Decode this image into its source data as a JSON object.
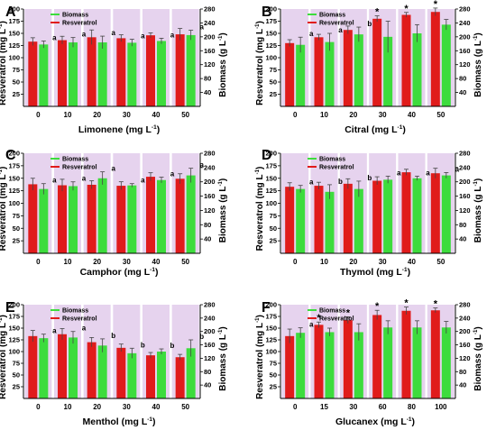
{
  "figure": {
    "legend_labels": [
      "Biomass",
      "Resveratrol"
    ],
    "colors": {
      "biomass": "#3ddc3d",
      "resveratrol": "#e01b1b",
      "shade": "#e6d3ee"
    }
  },
  "chart_data": [
    {
      "type": "bar",
      "panel": "A",
      "xlabel": "Limonene",
      "xunit": "(mg L-1)",
      "ylabel_left": "Resveratrol (mg L-1)",
      "ylabel_right": "Biomass (g L-1)",
      "categories": [
        "0",
        "10",
        "20",
        "30",
        "40",
        "50"
      ],
      "ylim_left": [
        0,
        200
      ],
      "yticks_left": [
        25,
        50,
        75,
        100,
        125,
        150,
        175,
        200
      ],
      "ylim_right": [
        0,
        280
      ],
      "yticks_right": [
        40,
        80,
        120,
        160,
        200,
        240,
        280
      ],
      "legend": "top-left",
      "series": [
        {
          "name": "Resveratrol",
          "axis": "left",
          "values": [
            133,
            136,
            142,
            140,
            146,
            148
          ],
          "errors": [
            8,
            8,
            15,
            7,
            5,
            12
          ]
        },
        {
          "name": "Biomass",
          "axis": "right",
          "values": [
            178,
            184,
            184,
            183,
            188,
            205
          ],
          "errors": [
            10,
            14,
            18,
            10,
            8,
            14
          ]
        }
      ],
      "annotations": [
        "a",
        "a",
        "a",
        "a",
        "a",
        "a"
      ]
    },
    {
      "type": "bar",
      "panel": "B",
      "xlabel": "Citral",
      "xunit": "(mg L-1)",
      "ylabel_left": "Resveratrol (mg L-1)",
      "ylabel_right": "Biomass (g L-1)",
      "categories": [
        "0",
        "10",
        "20",
        "30",
        "40",
        "50"
      ],
      "ylim_left": [
        0,
        200
      ],
      "yticks_left": [
        25,
        50,
        75,
        100,
        125,
        150,
        175,
        200
      ],
      "ylim_right": [
        0,
        280
      ],
      "yticks_right": [
        40,
        80,
        120,
        160,
        200,
        240,
        280
      ],
      "legend": "top-left",
      "series": [
        {
          "name": "Resveratrol",
          "axis": "left",
          "values": [
            130,
            142,
            157,
            180,
            188,
            194
          ],
          "errors": [
            7,
            6,
            8,
            6,
            5,
            8
          ]
        },
        {
          "name": "Biomass",
          "axis": "right",
          "values": [
            177,
            185,
            207,
            200,
            210,
            235
          ],
          "errors": [
            22,
            25,
            21,
            45,
            25,
            15
          ]
        }
      ],
      "annotations": [
        "a",
        "a",
        "b",
        "*",
        "*",
        "*"
      ]
    },
    {
      "type": "bar",
      "panel": "C",
      "xlabel": "Camphor",
      "xunit": "(mg L-1)",
      "ylabel_left": "Resveratrol (mg L-1)",
      "ylabel_right": "Biomass (g L-1)",
      "categories": [
        "0",
        "10",
        "20",
        "30",
        "40",
        "50"
      ],
      "ylim_left": [
        0,
        200
      ],
      "yticks_left": [
        25,
        50,
        75,
        100,
        125,
        150,
        175,
        200
      ],
      "ylim_right": [
        0,
        280
      ],
      "yticks_right": [
        40,
        80,
        120,
        160,
        200,
        240,
        280
      ],
      "legend": "top-left",
      "series": [
        {
          "name": "Resveratrol",
          "axis": "left",
          "values": [
            138,
            136,
            137,
            135,
            153,
            149
          ],
          "errors": [
            12,
            12,
            8,
            8,
            8,
            10
          ]
        },
        {
          "name": "Biomass",
          "axis": "right",
          "values": [
            180,
            188,
            210,
            190,
            205,
            218
          ],
          "errors": [
            15,
            12,
            18,
            5,
            8,
            20
          ]
        }
      ],
      "annotations": [
        "a",
        "a",
        "a",
        "a",
        "a",
        "a"
      ]
    },
    {
      "type": "bar",
      "panel": "D",
      "xlabel": "Thymol",
      "xunit": "(mg L-1)",
      "ylabel_left": "Resveratrol (mg L-1)",
      "ylabel_right": "Biomass (g L-1)",
      "categories": [
        "0",
        "10",
        "20",
        "30",
        "40",
        "50"
      ],
      "ylim_left": [
        0,
        200
      ],
      "yticks_left": [
        25,
        50,
        75,
        100,
        125,
        150,
        175,
        200
      ],
      "ylim_right": [
        0,
        280
      ],
      "yticks_right": [
        40,
        80,
        120,
        160,
        200,
        240,
        280
      ],
      "legend": "top-left",
      "series": [
        {
          "name": "Resveratrol",
          "axis": "left",
          "values": [
            133,
            135,
            139,
            145,
            162,
            160
          ],
          "errors": [
            8,
            7,
            10,
            8,
            6,
            10
          ]
        },
        {
          "name": "Biomass",
          "axis": "right",
          "values": [
            180,
            172,
            180,
            206,
            210,
            218
          ],
          "errors": [
            10,
            20,
            22,
            10,
            6,
            8
          ]
        }
      ],
      "annotations": [
        "a",
        "b",
        "b",
        "a",
        "a",
        "a"
      ]
    },
    {
      "type": "bar",
      "panel": "E",
      "xlabel": "Menthol",
      "xunit": "(mg L-1)",
      "ylabel_left": "Resveratrol (mg L-1)",
      "ylabel_right": "Biomass (g L-1)",
      "categories": [
        "0",
        "10",
        "20",
        "30",
        "40",
        "50"
      ],
      "ylim_left": [
        0,
        200
      ],
      "yticks_left": [
        25,
        50,
        75,
        100,
        125,
        150,
        175,
        200
      ],
      "ylim_right": [
        0,
        280
      ],
      "yticks_right": [
        40,
        80,
        120,
        160,
        200,
        240,
        280
      ],
      "legend": "top-left",
      "series": [
        {
          "name": "Resveratrol",
          "axis": "left",
          "values": [
            133,
            137,
            120,
            108,
            92,
            88
          ],
          "errors": [
            12,
            12,
            10,
            8,
            6,
            6
          ]
        },
        {
          "name": "Biomass",
          "axis": "right",
          "values": [
            180,
            182,
            158,
            135,
            140,
            150
          ],
          "errors": [
            12,
            18,
            20,
            15,
            8,
            25
          ]
        }
      ],
      "annotations": [
        "a",
        "a",
        "b",
        "b",
        "b",
        "b"
      ]
    },
    {
      "type": "bar",
      "panel": "F",
      "xlabel": "Glucanex",
      "xunit": "(mg L-1)",
      "ylabel_left": "Resveratrol (mg L-1)",
      "ylabel_right": "Biomass (g L-1)",
      "categories": [
        "0",
        "15",
        "30",
        "60",
        "80",
        "100"
      ],
      "ylim_left": [
        0,
        200
      ],
      "yticks_left": [
        25,
        50,
        75,
        100,
        125,
        150,
        175,
        200
      ],
      "ylim_right": [
        0,
        280
      ],
      "yticks_right": [
        40,
        80,
        120,
        160,
        200,
        240,
        280
      ],
      "legend": "top-left",
      "series": [
        {
          "name": "Resveratrol",
          "axis": "left",
          "values": [
            133,
            157,
            167,
            178,
            187,
            188
          ],
          "errors": [
            15,
            6,
            7,
            10,
            8,
            5
          ]
        },
        {
          "name": "Biomass",
          "axis": "right",
          "values": [
            196,
            198,
            198,
            212,
            212,
            212
          ],
          "errors": [
            15,
            12,
            25,
            20,
            20,
            18
          ]
        }
      ],
      "annotations": [
        "a",
        "*",
        "*",
        "*",
        "*",
        "*"
      ]
    }
  ]
}
